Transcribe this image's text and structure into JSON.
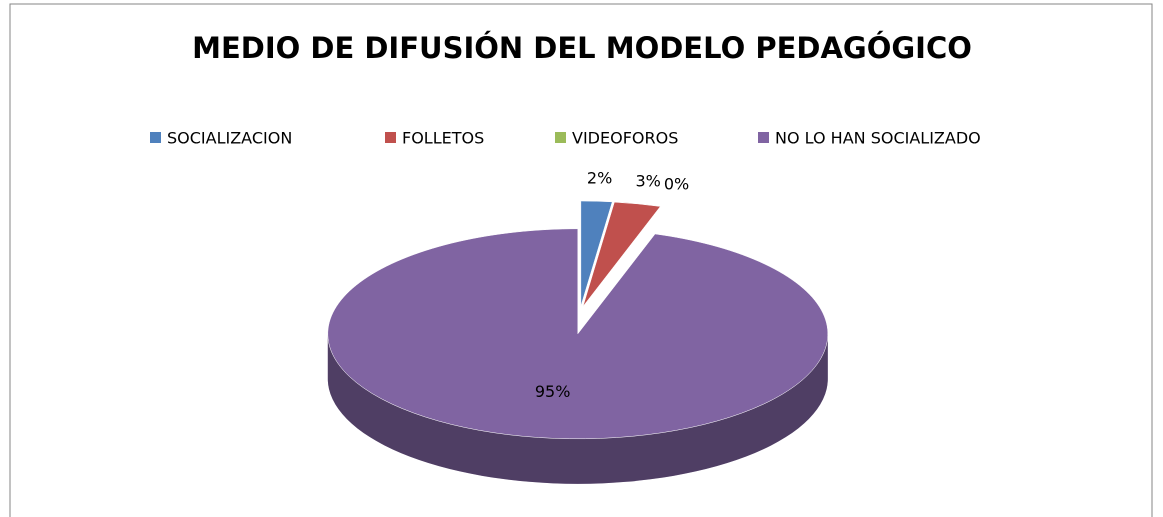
{
  "chart_data": {
    "type": "pie",
    "title": "MEDIO DE DIFUSIÓN DEL MODELO PEDAGÓGICO",
    "categories": [
      "SOCIALIZACION",
      "FOLLETOS",
      "VIDEOFOROS",
      "NO LO HAN SOCIALIZADO"
    ],
    "values": [
      2,
      3,
      0,
      95
    ],
    "value_labels": [
      "2%",
      "3%",
      "0%",
      "95%"
    ],
    "colors": [
      "#4f81bd",
      "#c0504d",
      "#9bbb59",
      "#8064a2"
    ],
    "legend": "top"
  }
}
